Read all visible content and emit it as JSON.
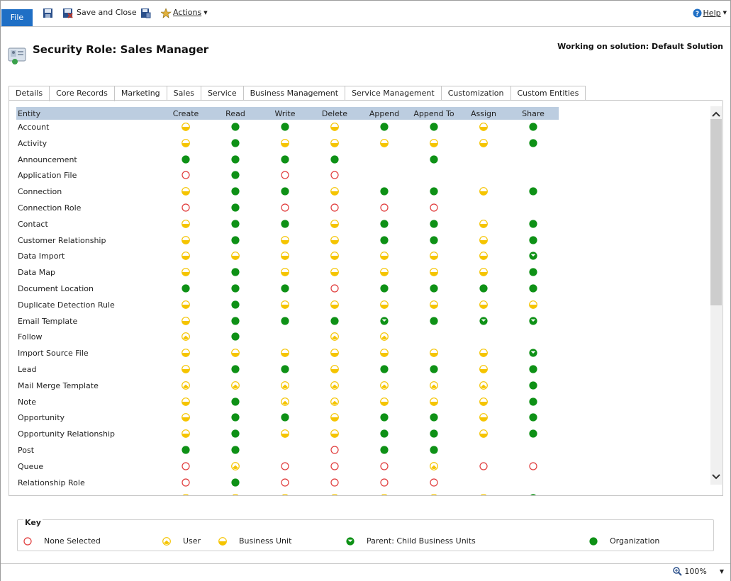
{
  "ribbon": {
    "file_label": "File",
    "save_and_close_label": "Save and Close",
    "actions_label": "Actions",
    "help_label": "Help"
  },
  "header": {
    "title": "Security Role: Sales Manager",
    "solution": "Working on solution: Default Solution"
  },
  "tabs": [
    "Details",
    "Core Records",
    "Marketing",
    "Sales",
    "Service",
    "Business Management",
    "Service Management",
    "Customization",
    "Custom Entities"
  ],
  "active_tab": "Core Records",
  "columns": [
    "Entity",
    "Create",
    "Read",
    "Write",
    "Delete",
    "Append",
    "Append To",
    "Assign",
    "Share"
  ],
  "rows": [
    {
      "entity": "Account",
      "levels": [
        "bu",
        "org",
        "org",
        "bu",
        "org",
        "org",
        "bu",
        "org"
      ]
    },
    {
      "entity": "Activity",
      "levels": [
        "bu",
        "org",
        "bu",
        "bu",
        "bu",
        "bu",
        "bu",
        "org"
      ]
    },
    {
      "entity": "Announcement",
      "levels": [
        "org",
        "org",
        "org",
        "org",
        "",
        "org",
        "",
        ""
      ]
    },
    {
      "entity": "Application File",
      "levels": [
        "none",
        "org",
        "none",
        "none",
        "",
        "",
        "",
        ""
      ]
    },
    {
      "entity": "Connection",
      "levels": [
        "bu",
        "org",
        "org",
        "bu",
        "org",
        "org",
        "bu",
        "org"
      ]
    },
    {
      "entity": "Connection Role",
      "levels": [
        "none",
        "org",
        "none",
        "none",
        "none",
        "none",
        "",
        ""
      ]
    },
    {
      "entity": "Contact",
      "levels": [
        "bu",
        "org",
        "org",
        "bu",
        "org",
        "org",
        "bu",
        "org"
      ]
    },
    {
      "entity": "Customer Relationship",
      "levels": [
        "bu",
        "org",
        "bu",
        "bu",
        "org",
        "org",
        "bu",
        "org"
      ]
    },
    {
      "entity": "Data Import",
      "levels": [
        "bu",
        "bu",
        "bu",
        "bu",
        "bu",
        "bu",
        "bu",
        "pc"
      ]
    },
    {
      "entity": "Data Map",
      "levels": [
        "bu",
        "org",
        "bu",
        "bu",
        "bu",
        "bu",
        "bu",
        "org"
      ]
    },
    {
      "entity": "Document Location",
      "levels": [
        "org",
        "org",
        "org",
        "none",
        "org",
        "org",
        "org",
        "org"
      ]
    },
    {
      "entity": "Duplicate Detection Rule",
      "levels": [
        "bu",
        "org",
        "bu",
        "bu",
        "bu",
        "bu",
        "bu",
        "bu"
      ]
    },
    {
      "entity": "Email Template",
      "levels": [
        "bu",
        "org",
        "org",
        "org",
        "pc",
        "org",
        "pc",
        "pc"
      ]
    },
    {
      "entity": "Follow",
      "levels": [
        "user",
        "org",
        "",
        "user",
        "user",
        "",
        "",
        ""
      ]
    },
    {
      "entity": "Import Source File",
      "levels": [
        "bu",
        "bu",
        "bu",
        "bu",
        "bu",
        "bu",
        "bu",
        "pc"
      ]
    },
    {
      "entity": "Lead",
      "levels": [
        "bu",
        "org",
        "org",
        "bu",
        "org",
        "org",
        "bu",
        "org"
      ]
    },
    {
      "entity": "Mail Merge Template",
      "levels": [
        "user",
        "user",
        "user",
        "user",
        "user",
        "user",
        "user",
        "org"
      ]
    },
    {
      "entity": "Note",
      "levels": [
        "bu",
        "org",
        "user",
        "user",
        "bu",
        "bu",
        "bu",
        "org"
      ]
    },
    {
      "entity": "Opportunity",
      "levels": [
        "bu",
        "org",
        "org",
        "bu",
        "org",
        "org",
        "bu",
        "org"
      ]
    },
    {
      "entity": "Opportunity Relationship",
      "levels": [
        "bu",
        "org",
        "bu",
        "bu",
        "org",
        "org",
        "bu",
        "org"
      ]
    },
    {
      "entity": "Post",
      "levels": [
        "org",
        "org",
        "",
        "none",
        "org",
        "org",
        "",
        ""
      ]
    },
    {
      "entity": "Queue",
      "levels": [
        "none",
        "user",
        "none",
        "none",
        "none",
        "user",
        "none",
        "none"
      ]
    },
    {
      "entity": "Relationship Role",
      "levels": [
        "none",
        "org",
        "none",
        "none",
        "none",
        "none",
        "",
        ""
      ]
    },
    {
      "entity": "",
      "levels": [
        "bu",
        "bu",
        "bu",
        "bu",
        "bu",
        "bu",
        "bu",
        "org"
      ]
    }
  ],
  "key": {
    "title": "Key",
    "items": [
      {
        "level": "none",
        "label": "None Selected"
      },
      {
        "level": "user",
        "label": "User"
      },
      {
        "level": "bu",
        "label": "Business Unit"
      },
      {
        "level": "pc",
        "label": "Parent: Child Business Units"
      },
      {
        "level": "org",
        "label": "Organization"
      }
    ]
  },
  "colors": {
    "green": "#0e9116",
    "yellow": "#f5c400",
    "red": "#e03a3a",
    "header_bg": "#bccde0",
    "file_blue": "#1f6fc5"
  },
  "status": {
    "zoom": "100%"
  }
}
